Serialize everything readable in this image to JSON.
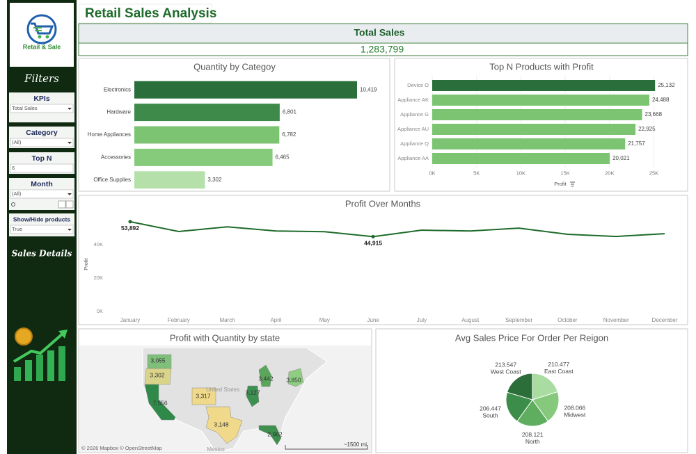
{
  "sidebar": {
    "logo_text": "Retail & Sale",
    "filters_title": "Filters",
    "filters": [
      {
        "label": "KPIs",
        "value": "Total Sales"
      },
      {
        "label": "Category",
        "value": "(All)"
      },
      {
        "label": "Top N",
        "value": "6"
      },
      {
        "label": "Month",
        "value": "(All)"
      },
      {
        "label": "Show/Hide products",
        "value": "True"
      }
    ],
    "details_title": "Sales Details"
  },
  "header": {
    "title": "Retail Sales Analysis"
  },
  "kpi": {
    "label": "Total Sales",
    "value": "1,283,799"
  },
  "chart_data": [
    {
      "type": "bar",
      "title": "Quantity by Categoy",
      "categories": [
        "Electronics",
        "Hardware",
        "Home Appliances",
        "Accessories",
        "Office Supplies"
      ],
      "values": [
        10419,
        6801,
        6782,
        6465,
        3302
      ],
      "value_labels": [
        "10,419",
        "6,801",
        "6,782",
        "6,465",
        "3,302"
      ],
      "colors": [
        "#2a6e3b",
        "#3d8a4a",
        "#7cc472",
        "#86cb7b",
        "#b5e0aa"
      ]
    },
    {
      "type": "bar",
      "title": "Top N Products with Profit",
      "categories": [
        "Device O",
        "Appliance AK",
        "Appliance G",
        "Appliance AU",
        "Appliance Q",
        "Appliance AA"
      ],
      "values": [
        25132,
        24488,
        23668,
        22925,
        21757,
        20021
      ],
      "value_labels": [
        "25,132",
        "24,488",
        "23,668",
        "22,925",
        "21,757",
        "20,021"
      ],
      "colors": [
        "#2a6e3b",
        "#7cc472",
        "#7cc472",
        "#7cc472",
        "#7cc472",
        "#7cc472"
      ],
      "xlabel": "Profit",
      "xlim": [
        0,
        27000
      ],
      "xticks": [
        {
          "value": 0,
          "label": "0K"
        },
        {
          "value": 5000,
          "label": "5K"
        },
        {
          "value": 10000,
          "label": "10K"
        },
        {
          "value": 15000,
          "label": "15K"
        },
        {
          "value": 20000,
          "label": "20K"
        },
        {
          "value": 25000,
          "label": "25K"
        }
      ],
      "grid": true
    },
    {
      "type": "line",
      "title": "Profit Over Months",
      "categories": [
        "January",
        "February",
        "March",
        "April",
        "May",
        "June",
        "July",
        "August",
        "September",
        "October",
        "November",
        "December"
      ],
      "values": [
        53892,
        48000,
        50800,
        48300,
        47900,
        44915,
        48800,
        48300,
        50000,
        46300,
        45000,
        46700
      ],
      "value_labels": [
        "53,892",
        null,
        null,
        null,
        null,
        "44,915",
        null,
        null,
        null,
        null,
        null,
        null
      ],
      "color": "#1e6b2a",
      "ylabel": "Profit",
      "ylim": [
        0,
        58000
      ],
      "yticks": [
        {
          "value": 0,
          "label": "0K"
        },
        {
          "value": 20000,
          "label": "20K"
        },
        {
          "value": 40000,
          "label": "40K"
        }
      ]
    },
    {
      "type": "map",
      "title": "Profit with Quantity by state",
      "values": [
        3055,
        3302,
        7556,
        3317,
        3148,
        3442,
        3127,
        3850,
        2962
      ],
      "value_labels": [
        "3,055",
        "3,302",
        "7,556",
        "3,317",
        "3,148",
        "3,442",
        "3,127",
        "3,850",
        "2,962"
      ],
      "colors": [
        "#7fbf7b",
        "#d9d48a",
        "#2f8a4a",
        "#f0d98a",
        "#f0d98a",
        "#5aa65a",
        "#3d9150",
        "#8fce82",
        "#3f8f4e"
      ],
      "place_labels": [
        "United States",
        "Mexico"
      ],
      "attribution": "© 2026 Mapbox © OpenStreetMap",
      "scale_label": "~1500 mi"
    },
    {
      "type": "pie",
      "title": "Avg Sales Price For Order Per Reigon",
      "categories": [
        "East Coast",
        "Midwest",
        "North",
        "South",
        "West Coast"
      ],
      "values": [
        210.477,
        208.066,
        208.121,
        206.447,
        213.547
      ],
      "colors": [
        "#a8dca0",
        "#86c97d",
        "#5fae5f",
        "#3c8c4a",
        "#2b6e3a"
      ]
    }
  ]
}
